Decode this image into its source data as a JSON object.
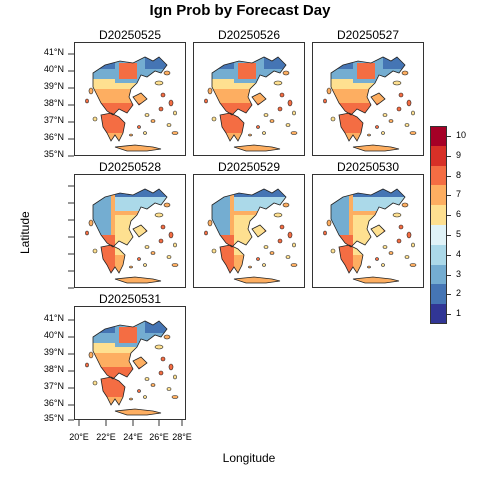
{
  "title": "Ign Prob by Forecast Day",
  "xlabel": "Longitude",
  "ylabel": "Latitude",
  "panels": [
    {
      "label": "D20250525",
      "pattern": "north-blue"
    },
    {
      "label": "D20250526",
      "pattern": "north-blue"
    },
    {
      "label": "D20250527",
      "pattern": "north-blue"
    },
    {
      "label": "D20250528",
      "pattern": "west-blue"
    },
    {
      "label": "D20250529",
      "pattern": "west-blue"
    },
    {
      "label": "D20250530",
      "pattern": "west-blue"
    },
    {
      "label": "D20250531",
      "pattern": "north-blue"
    }
  ],
  "lat_ticks": [
    "41°N",
    "40°N",
    "39°N",
    "38°N",
    "37°N",
    "36°N",
    "35°N"
  ],
  "lon_ticks": [
    "20°E",
    "22°E",
    "24°E",
    "26°E",
    "28°E"
  ],
  "legend": {
    "labels": [
      "1",
      "2",
      "3",
      "4",
      "5",
      "6",
      "7",
      "8",
      "9",
      "10"
    ],
    "colors": [
      "#313695",
      "#4575b4",
      "#74add1",
      "#abd9e9",
      "#e0f3f8",
      "#fee090",
      "#fdae61",
      "#f46d43",
      "#d73027",
      "#a50026"
    ]
  }
}
